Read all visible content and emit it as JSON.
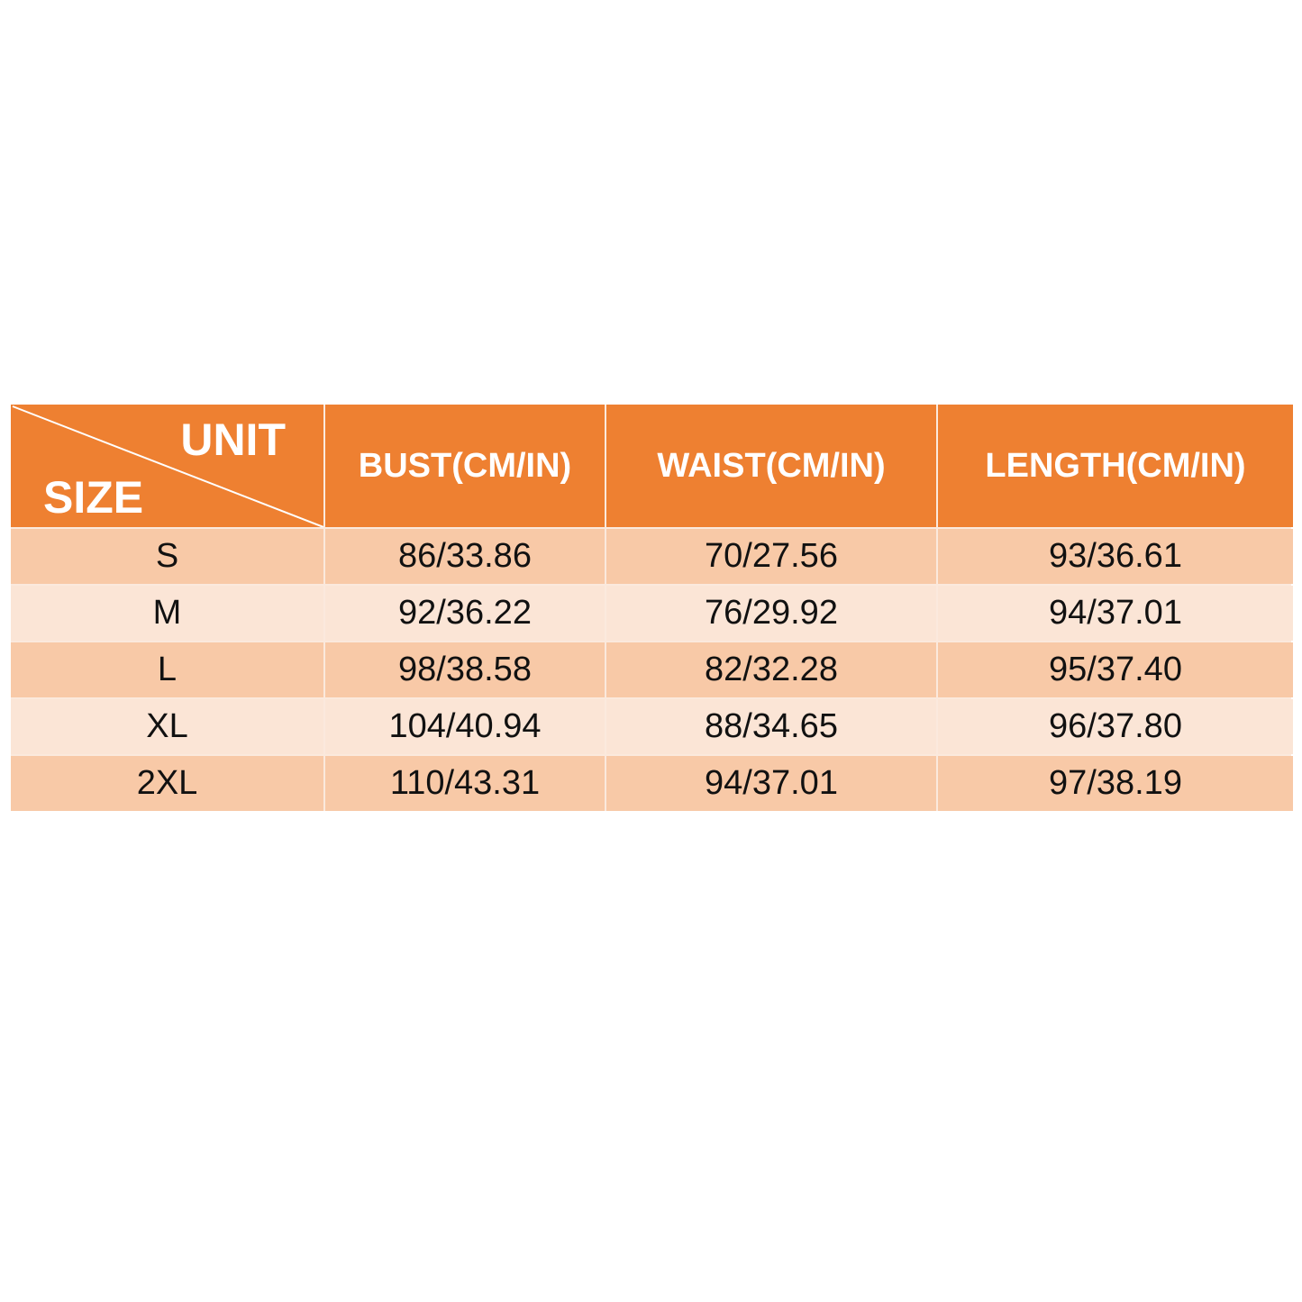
{
  "colors": {
    "header": "#ee8031",
    "row_odd": "#f8c9a7",
    "row_even": "#fbe5d6"
  },
  "header": {
    "unit": "UNIT",
    "size": "SIZE",
    "columns": [
      "BUST(CM/IN)",
      "WAIST(CM/IN)",
      "LENGTH(CM/IN)"
    ]
  },
  "rows": [
    {
      "size": "S",
      "bust": "86/33.86",
      "waist": "70/27.56",
      "length": "93/36.61"
    },
    {
      "size": "M",
      "bust": "92/36.22",
      "waist": "76/29.92",
      "length": "94/37.01"
    },
    {
      "size": "L",
      "bust": "98/38.58",
      "waist": "82/32.28",
      "length": "95/37.40"
    },
    {
      "size": "XL",
      "bust": "104/40.94",
      "waist": "88/34.65",
      "length": "96/37.80"
    },
    {
      "size": "2XL",
      "bust": "110/43.31",
      "waist": "94/37.01",
      "length": "97/38.19"
    }
  ]
}
